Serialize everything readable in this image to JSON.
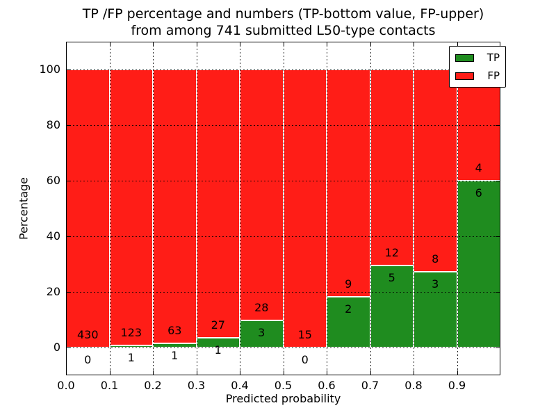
{
  "title": {
    "line1": "TP /FP percentage and numbers (TP-bottom value, FP-upper)",
    "line2": "from among 741 submitted L50-type contacts"
  },
  "axes": {
    "xlabel": "Predicted probability",
    "ylabel": "Percentage"
  },
  "legend": {
    "items": [
      {
        "label": "TP",
        "color": "#1f8c1f"
      },
      {
        "label": "FP",
        "color": "#ff1d17"
      }
    ]
  },
  "colors": {
    "tp_green": "#1f8c1f",
    "fp_red": "#ff1d17",
    "background": "#ffffff",
    "text": "#000000",
    "bar_edge": "#ffffff",
    "grid": "#000000"
  },
  "chart_data": {
    "type": "bar",
    "stacked": true,
    "normalized": "each bin stacks to 100%",
    "title": "TP /FP percentage and numbers (TP-bottom value, FP-upper) from among 741 submitted L50-type contacts",
    "xlabel": "Predicted probability",
    "ylabel": "Percentage",
    "xlim": [
      0.0,
      1.0
    ],
    "ylim": [
      -10,
      110
    ],
    "xticks": [
      "0.0",
      "0.1",
      "0.2",
      "0.3",
      "0.4",
      "0.5",
      "0.6",
      "0.7",
      "0.8",
      "0.9"
    ],
    "yticks": [
      0,
      20,
      40,
      60,
      80,
      100
    ],
    "grid": "dotted black at bin edges and y ticks",
    "legend_position": "upper right",
    "total_contacts": 741,
    "bins": [
      [
        0.0,
        0.1
      ],
      [
        0.1,
        0.2
      ],
      [
        0.2,
        0.3
      ],
      [
        0.3,
        0.4
      ],
      [
        0.4,
        0.5
      ],
      [
        0.5,
        0.6
      ],
      [
        0.6,
        0.7
      ],
      [
        0.7,
        0.8
      ],
      [
        0.8,
        0.9
      ],
      [
        0.9,
        1.0
      ]
    ],
    "series": [
      {
        "name": "TP",
        "color": "#1f8c1f",
        "counts": [
          0,
          1,
          1,
          1,
          3,
          0,
          2,
          5,
          3,
          6
        ],
        "pct": [
          0.0,
          0.81,
          1.56,
          3.57,
          9.68,
          0.0,
          18.18,
          29.41,
          27.27,
          60.0
        ]
      },
      {
        "name": "FP",
        "color": "#ff1d17",
        "counts": [
          430,
          123,
          63,
          27,
          28,
          15,
          9,
          12,
          8,
          4
        ],
        "pct": [
          100.0,
          99.19,
          98.44,
          96.43,
          90.32,
          100.0,
          81.82,
          70.59,
          72.73,
          40.0
        ]
      }
    ]
  }
}
